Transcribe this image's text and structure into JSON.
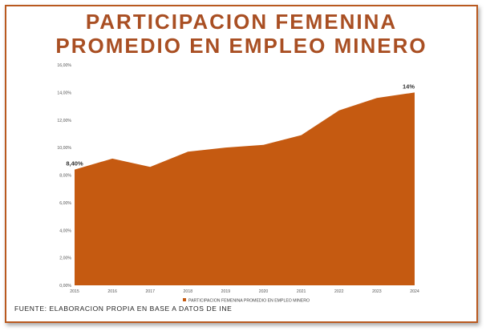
{
  "header": {
    "title_line1": "PARTICIPACION FEMENINA",
    "title_line2": "PROMEDIO EN EMPLEO MINERO"
  },
  "footer": {
    "source": "FUENTE: ELABORACION PROPIA EN BASE A DATOS DE INE"
  },
  "colors": {
    "area": "#c55a11",
    "title": "#a94f23",
    "border": "#b9591f"
  },
  "chart_data": {
    "type": "area",
    "x": [
      "2015",
      "2016",
      "2017",
      "2018",
      "2019",
      "2020",
      "2021",
      "2022",
      "2023",
      "2024"
    ],
    "series": [
      {
        "name": "PARTICIPACION FEMENINA PROMEDIO EN EMPLEO MINERO",
        "values": [
          8.4,
          9.2,
          8.6,
          9.7,
          10.0,
          10.2,
          10.9,
          12.7,
          13.6,
          14.0
        ]
      }
    ],
    "yticks": [
      "0,00%",
      "2,00%",
      "4,00%",
      "6,00%",
      "8,00%",
      "10,00%",
      "12,00%",
      "14,00%",
      "16,00%"
    ],
    "ylim": [
      0,
      16
    ],
    "data_labels": [
      {
        "index": 0,
        "text": "8,40%"
      },
      {
        "index": 9,
        "text": "14%"
      }
    ],
    "legend": "bottom",
    "grid": false
  }
}
